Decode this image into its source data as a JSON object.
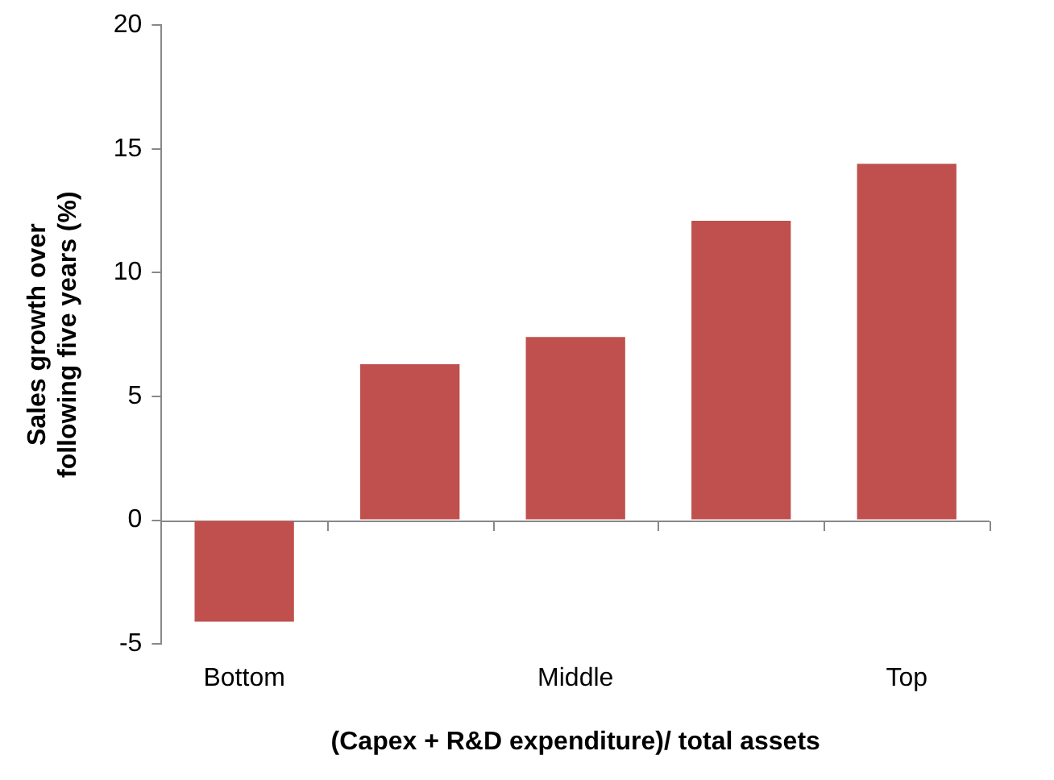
{
  "chart_data": {
    "type": "bar",
    "xlabel": "(Capex + R&D expenditure)/ total assets",
    "ylabel": "Sales growth over following five years (%)",
    "categories": [
      "Bottom",
      null,
      "Middle",
      null,
      "Top"
    ],
    "values": [
      -4.1,
      6.3,
      7.4,
      12.1,
      14.4
    ],
    "color": "#c0504d",
    "ylim": [
      -5,
      20
    ],
    "yticks": [
      -5,
      0,
      5,
      10,
      15,
      20
    ],
    "legend": false
  }
}
